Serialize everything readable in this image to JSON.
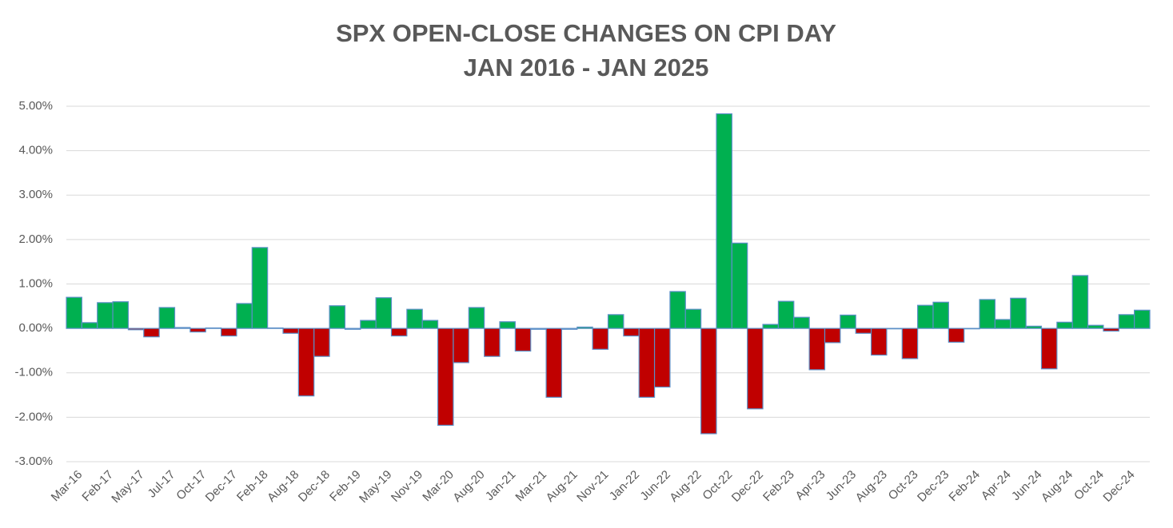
{
  "chart_data": {
    "type": "bar",
    "title": "SPX OPEN-CLOSE CHANGES ON CPI DAY",
    "subtitle": "JAN 2016 - JAN 2025",
    "categories": [
      "Mar-16",
      null,
      "Feb-17",
      null,
      "May-17",
      null,
      "Jul-17",
      null,
      "Oct-17",
      null,
      "Dec-17",
      null,
      "Feb-18",
      null,
      "Aug-18",
      null,
      "Dec-18",
      null,
      "Feb-19",
      null,
      "May-19",
      null,
      "Nov-19",
      null,
      "Mar-20",
      null,
      "Aug-20",
      null,
      "Jan-21",
      null,
      "Mar-21",
      null,
      "Aug-21",
      null,
      "Nov-21",
      null,
      "Jan-22",
      null,
      "Jun-22",
      null,
      "Aug-22",
      null,
      "Oct-22",
      null,
      "Dec-22",
      null,
      "Feb-23",
      null,
      "Apr-23",
      null,
      "Jun-23",
      null,
      "Aug-23",
      null,
      "Oct-23",
      null,
      "Dec-23",
      null,
      "Feb-24",
      null,
      "Apr-24",
      null,
      "Jun-24",
      null,
      "Aug-24",
      null,
      "Oct-24",
      null,
      "Dec-24",
      null
    ],
    "values": [
      0.7,
      0.13,
      0.58,
      0.6,
      -0.03,
      -0.19,
      0.47,
      0.02,
      -0.08,
      0.01,
      -0.17,
      0.56,
      1.82,
      0.01,
      -0.11,
      -1.52,
      -0.63,
      0.51,
      -0.02,
      0.18,
      0.69,
      -0.17,
      0.43,
      0.18,
      -2.18,
      -0.77,
      0.47,
      -0.63,
      0.15,
      -0.51,
      -0.02,
      -1.55,
      -0.02,
      0.03,
      -0.47,
      0.31,
      -0.17,
      -1.55,
      -1.32,
      0.83,
      0.43,
      -2.37,
      4.83,
      1.92,
      -1.81,
      0.09,
      0.61,
      0.25,
      -0.93,
      -0.32,
      0.3,
      -0.11,
      -0.6,
      -0.01,
      -0.68,
      0.52,
      0.59,
      -0.31,
      -0.01,
      0.65,
      0.2,
      0.68,
      0.05,
      -0.91,
      0.14,
      1.19,
      0.07,
      -0.06,
      0.31,
      0.41
    ],
    "positive_color": "#00b050",
    "negative_color": "#c00000",
    "edge_color": "#5b8fc7",
    "ylim": [
      -3,
      5
    ],
    "yticks": [
      {
        "value": -3,
        "label": "-3.00%"
      },
      {
        "value": -2,
        "label": "-2.00%"
      },
      {
        "value": -1,
        "label": "-1.00%"
      },
      {
        "value": 0,
        "label": "0.00%"
      },
      {
        "value": 1,
        "label": "1.00%"
      },
      {
        "value": 2,
        "label": "2.00%"
      },
      {
        "value": 3,
        "label": "3.00%"
      },
      {
        "value": 4,
        "label": "4.00%"
      },
      {
        "value": 5,
        "label": "5.00%"
      }
    ],
    "grid": true
  }
}
